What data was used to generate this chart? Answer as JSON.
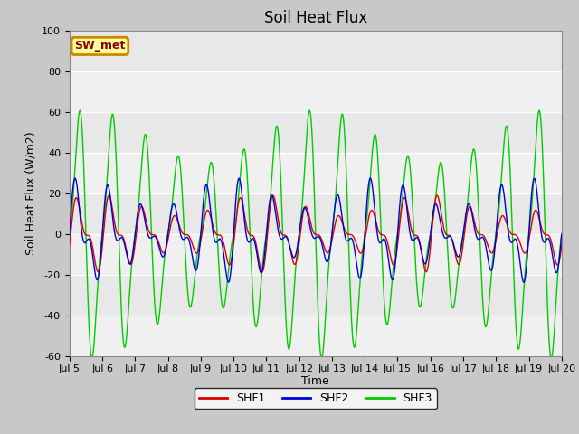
{
  "title": "Soil Heat Flux",
  "ylabel": "Soil Heat Flux (W/m2)",
  "xlabel": "Time",
  "ylim": [
    -60,
    100
  ],
  "yticks": [
    -60,
    -40,
    -20,
    0,
    20,
    40,
    60,
    80,
    100
  ],
  "xtick_labels": [
    "Jul 5",
    "Jul 6",
    "Jul 7",
    "Jul 8",
    "Jul 9",
    "Jul 10",
    "Jul 11",
    "Jul 12",
    "Jul 13",
    "Jul 14",
    "Jul 15",
    "Jul 16",
    "Jul 17",
    "Jul 18",
    "Jul 19",
    "Jul 20"
  ],
  "colors": {
    "SHF1": "#dd0000",
    "SHF2": "#0000dd",
    "SHF3": "#00cc00"
  },
  "legend_label": "SW_met",
  "legend_bg": "#ffff99",
  "legend_border": "#cc8800",
  "fig_bg": "#c8c8c8",
  "plot_bg": "#e8e8e8",
  "band_light": "#f0f0f0",
  "title_fontsize": 12,
  "axis_fontsize": 9,
  "tick_fontsize": 8
}
